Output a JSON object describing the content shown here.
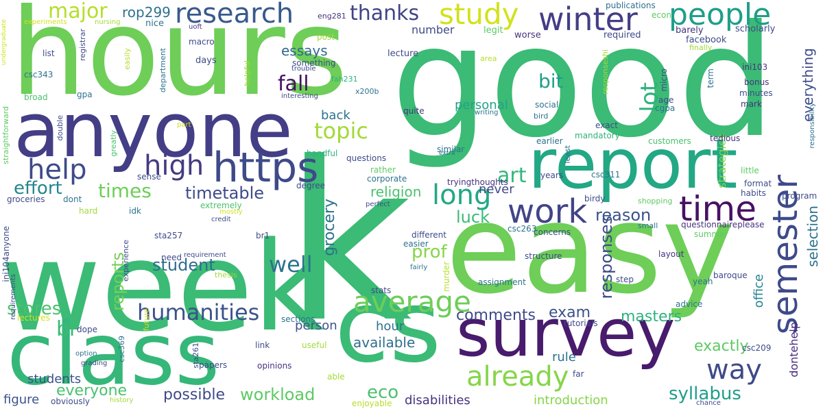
{
  "words": [
    {
      "text": "week",
      "color": "#3bbb75"
    },
    {
      "text": "good",
      "color": "#3bbb75"
    },
    {
      "text": "hours",
      "color": "#6ece58"
    },
    {
      "text": "easy",
      "color": "#6ece58"
    },
    {
      "text": "class",
      "color": "#35b779"
    },
    {
      "text": "k",
      "color": "#3bbb75"
    },
    {
      "text": "anyone",
      "color": "#433e85"
    },
    {
      "text": "report",
      "color": "#22a884"
    },
    {
      "text": "cs",
      "color": "#3bbb75"
    },
    {
      "text": "survey",
      "color": "#481b6d"
    },
    {
      "text": "https",
      "color": "#3e4a89"
    },
    {
      "text": "research",
      "color": "#38598c"
    },
    {
      "text": "people",
      "color": "#1f9e89"
    },
    {
      "text": "study",
      "color": "#d2e21b"
    },
    {
      "text": "winter",
      "color": "#433e85"
    },
    {
      "text": "time",
      "color": "#471164"
    },
    {
      "text": "semester",
      "color": "#3e4a89"
    },
    {
      "text": "work",
      "color": "#414487"
    },
    {
      "text": "help",
      "color": "#3e4a89"
    },
    {
      "text": "high",
      "color": "#443a83"
    },
    {
      "text": "average",
      "color": "#6ece58"
    },
    {
      "text": "already",
      "color": "#86d549"
    },
    {
      "text": "way",
      "color": "#3e4a89"
    },
    {
      "text": "long",
      "color": "#22a884"
    },
    {
      "text": "topic",
      "color": "#a2da37"
    },
    {
      "text": "fall",
      "color": "#471164"
    },
    {
      "text": "lot",
      "color": "#2db27d"
    },
    {
      "text": "major",
      "color": "#b5de2b"
    },
    {
      "text": "thanks",
      "color": "#414487"
    },
    {
      "text": "rop299",
      "color": "#2c728e"
    },
    {
      "text": "bit",
      "color": "#1f9e89"
    },
    {
      "text": "essays",
      "color": "#31688e"
    },
    {
      "text": "art",
      "color": "#32b67a"
    },
    {
      "text": "times",
      "color": "#6ece58"
    },
    {
      "text": "effort",
      "color": "#25858e"
    },
    {
      "text": "timetable",
      "color": "#3e4a89"
    },
    {
      "text": "humanities",
      "color": "#3b528b"
    },
    {
      "text": "well",
      "color": "#2c728e"
    },
    {
      "text": "student",
      "color": "#2e6e8e"
    },
    {
      "text": "stores",
      "color": "#4ac16d"
    },
    {
      "text": "reports",
      "color": "#75d054"
    },
    {
      "text": "br",
      "color": "#3bbb75"
    },
    {
      "text": "students",
      "color": "#3b528b"
    },
    {
      "text": "everyone",
      "color": "#4ac16d"
    },
    {
      "text": "possible",
      "color": "#3e4a89"
    },
    {
      "text": "workload",
      "color": "#5ec962"
    },
    {
      "text": "eco",
      "color": "#4ac16d"
    },
    {
      "text": "syllabus",
      "color": "#1f9e89"
    },
    {
      "text": "introduction",
      "color": "#86d549"
    },
    {
      "text": "disabilities",
      "color": "#46327e"
    },
    {
      "text": "available",
      "color": "#2e6e8e"
    },
    {
      "text": "figure",
      "color": "#3b528b"
    },
    {
      "text": "comments",
      "color": "#3e4a89"
    },
    {
      "text": "exam",
      "color": "#3b528b"
    },
    {
      "text": "masters",
      "color": "#2db27d"
    },
    {
      "text": "responses",
      "color": "#3e4a89"
    },
    {
      "text": "reason",
      "color": "#3b528b"
    },
    {
      "text": "prof",
      "color": "#86d549"
    },
    {
      "text": "luck",
      "color": "#3bbb75"
    },
    {
      "text": "grocery",
      "color": "#2c728e"
    },
    {
      "text": "religion",
      "color": "#4ac16d"
    },
    {
      "text": "personal",
      "color": "#20a386"
    },
    {
      "text": "back",
      "color": "#2c728e"
    },
    {
      "text": "selection",
      "color": "#2c728e"
    },
    {
      "text": "everything",
      "color": "#3e4a89"
    },
    {
      "text": "office",
      "color": "#25858e"
    },
    {
      "text": "exactly",
      "color": "#5ec962"
    },
    {
      "text": "rule",
      "color": "#2c728e"
    },
    {
      "text": "hour",
      "color": "#2c728e"
    },
    {
      "text": "person",
      "color": "#3b528b"
    },
    {
      "text": "strategies",
      "color": "#86d549"
    },
    {
      "text": "never",
      "color": "#3e4a89"
    },
    {
      "text": "number",
      "color": "#3e4a89"
    },
    {
      "text": "dontehelp",
      "color": "#482878"
    },
    {
      "text": "publications",
      "color": "#2e6e8e"
    },
    {
      "text": "eng281",
      "color": "#46327e"
    },
    {
      "text": "econ",
      "color": "#5ec962"
    },
    {
      "text": "facebook",
      "color": "#3e4a89"
    },
    {
      "text": "scholarly",
      "color": "#3e4a89"
    },
    {
      "text": "barely",
      "color": "#46327e"
    },
    {
      "text": "required",
      "color": "#3e4a89"
    },
    {
      "text": "worse",
      "color": "#46327e"
    },
    {
      "text": "legit",
      "color": "#5ec962"
    },
    {
      "text": "lecture",
      "color": "#3e4a89"
    },
    {
      "text": "area",
      "color": "#b5de2b"
    },
    {
      "text": "term",
      "color": "#2c728e"
    },
    {
      "text": "finally",
      "color": "#a2da37"
    },
    {
      "text": "post",
      "color": "#a2da37"
    },
    {
      "text": "nice",
      "color": "#2c728e"
    },
    {
      "text": "macro",
      "color": "#3e4a89"
    },
    {
      "text": "days",
      "color": "#3e4a89"
    },
    {
      "text": "uoft",
      "color": "#46327e"
    },
    {
      "text": "experiments",
      "color": "#d2e21b"
    },
    {
      "text": "nursing",
      "color": "#a2da37"
    },
    {
      "text": "registrar",
      "color": "#3e4a89"
    },
    {
      "text": "undergraduate",
      "color": "#d2e21b"
    },
    {
      "text": "list",
      "color": "#3e4a89"
    },
    {
      "text": "csc343",
      "color": "#2c728e"
    },
    {
      "text": "broad",
      "color": "#4ac16d"
    },
    {
      "text": "gpa",
      "color": "#2c728e"
    },
    {
      "text": "easily",
      "color": "#b5de2b"
    },
    {
      "text": "helpful",
      "color": "#a2da37"
    },
    {
      "text": "department",
      "color": "#2c728e"
    },
    {
      "text": "trouble",
      "color": "#3e4a89"
    },
    {
      "text": "something",
      "color": "#3e4a89"
    },
    {
      "text": "interesting",
      "color": "#3e4a89"
    },
    {
      "text": "fah231",
      "color": "#2db27d"
    },
    {
      "text": "x200b",
      "color": "#2c728e"
    },
    {
      "text": "quite",
      "color": "#46327e"
    },
    {
      "text": "writing",
      "color": "#2c728e"
    },
    {
      "text": "bird",
      "color": "#2c728e"
    },
    {
      "text": "social",
      "color": "#2c728e"
    },
    {
      "text": "age",
      "color": "#3e4a89"
    },
    {
      "text": "cgpa",
      "color": "#2c728e"
    },
    {
      "text": "micro",
      "color": "#3e4a89"
    },
    {
      "text": "responseshi",
      "color": "#a2da37"
    },
    {
      "text": "ini103",
      "color": "#46327e"
    },
    {
      "text": "bonus",
      "color": "#46327e"
    },
    {
      "text": "minutes",
      "color": "#3e4a89"
    },
    {
      "text": "mark",
      "color": "#46327e"
    },
    {
      "text": "responsibility",
      "color": "#2c728e"
    },
    {
      "text": "tedious",
      "color": "#46327e"
    },
    {
      "text": "customers",
      "color": "#4ac16d"
    },
    {
      "text": "exact",
      "color": "#3e4a89"
    },
    {
      "text": "mandatory",
      "color": "#2db27d"
    },
    {
      "text": "earlier",
      "color": "#2c728e"
    },
    {
      "text": "least",
      "color": "#2c728e"
    },
    {
      "text": "double",
      "color": "#3e4a89"
    },
    {
      "text": "greatly",
      "color": "#4ac16d"
    },
    {
      "text": "straightforward",
      "color": "#5ec962"
    },
    {
      "text": "part",
      "color": "#d2e21b"
    },
    {
      "text": "handful",
      "color": "#2db27d"
    },
    {
      "text": "questions",
      "color": "#3e4a89"
    },
    {
      "text": "similar",
      "color": "#2c728e"
    },
    {
      "text": "extra",
      "color": "#2c728e"
    },
    {
      "text": "rather",
      "color": "#5ec962"
    },
    {
      "text": "corporate",
      "color": "#2c728e"
    },
    {
      "text": "tryingthoughts",
      "color": "#46327e"
    },
    {
      "text": "years",
      "color": "#3e4a89"
    },
    {
      "text": "csc311",
      "color": "#2c728e"
    },
    {
      "text": "little",
      "color": "#5ec962"
    },
    {
      "text": "format",
      "color": "#3e4a89"
    },
    {
      "text": "habits",
      "color": "#3e4a89"
    },
    {
      "text": "program",
      "color": "#3e4a89"
    },
    {
      "text": "sense",
      "color": "#3e4a89"
    },
    {
      "text": "degree",
      "color": "#3e4a89"
    },
    {
      "text": "groceries",
      "color": "#3e4a89"
    },
    {
      "text": "dont",
      "color": "#2c728e"
    },
    {
      "text": "idk",
      "color": "#2c728e"
    },
    {
      "text": "hard",
      "color": "#a2da37"
    },
    {
      "text": "extremely",
      "color": "#4ac16d"
    },
    {
      "text": "mostly",
      "color": "#d2e21b"
    },
    {
      "text": "credit",
      "color": "#3e4a89"
    },
    {
      "text": "perfect",
      "color": "#3e4a89"
    },
    {
      "text": "birdy",
      "color": "#3e4a89"
    },
    {
      "text": "shopping",
      "color": "#5ec962"
    },
    {
      "text": "small",
      "color": "#2c728e"
    },
    {
      "text": "questionnaireplease",
      "color": "#46327e"
    },
    {
      "text": "concerns",
      "color": "#3e4a89"
    },
    {
      "text": "csc263",
      "color": "#2c728e"
    },
    {
      "text": "summer",
      "color": "#5ec962"
    },
    {
      "text": "layout",
      "color": "#46327e"
    },
    {
      "text": "structure",
      "color": "#3e4a89"
    },
    {
      "text": "different",
      "color": "#3e4a89"
    },
    {
      "text": "easier",
      "color": "#2c728e"
    },
    {
      "text": "fairly",
      "color": "#2c728e"
    },
    {
      "text": "assignment",
      "color": "#2c728e"
    },
    {
      "text": "step",
      "color": "#3e4a89"
    },
    {
      "text": "baroque",
      "color": "#3e4a89"
    },
    {
      "text": "yeah",
      "color": "#2c728e"
    },
    {
      "text": "advice",
      "color": "#2c728e"
    },
    {
      "text": "murder",
      "color": "#b5de2b"
    },
    {
      "text": "stats",
      "color": "#3e4a89"
    },
    {
      "text": "sta257",
      "color": "#3e4a89"
    },
    {
      "text": "br1",
      "color": "#3e4a89"
    },
    {
      "text": "experience",
      "color": "#3e4a89"
    },
    {
      "text": "need",
      "color": "#3e4a89"
    },
    {
      "text": "requirement",
      "color": "#3e4a89"
    },
    {
      "text": "ini104anyone",
      "color": "#3e4a89"
    },
    {
      "text": "requirements",
      "color": "#3e4a89"
    },
    {
      "text": "thesis",
      "color": "#a2da37"
    },
    {
      "text": "lectures",
      "color": "#d2e21b"
    },
    {
      "text": "sections",
      "color": "#2c728e"
    },
    {
      "text": "future",
      "color": "#d2e21b"
    },
    {
      "text": "csc369",
      "color": "#2c728e"
    },
    {
      "text": "dope",
      "color": "#3e4a89"
    },
    {
      "text": "option",
      "color": "#2c728e"
    },
    {
      "text": "grading",
      "color": "#3e4a89"
    },
    {
      "text": "obviously",
      "color": "#3e4a89"
    },
    {
      "text": "history",
      "color": "#a2da37"
    },
    {
      "text": "sta261",
      "color": "#3e4a89"
    },
    {
      "text": "link",
      "color": "#3e4a89"
    },
    {
      "text": "useful",
      "color": "#a2da37"
    },
    {
      "text": "papers",
      "color": "#3e4a89"
    },
    {
      "text": "opinions",
      "color": "#46327e"
    },
    {
      "text": "able",
      "color": "#a2da37"
    },
    {
      "text": "enjoyable",
      "color": "#b5de2b"
    },
    {
      "text": "tutorials",
      "color": "#3e4a89"
    },
    {
      "text": "far",
      "color": "#3e4a89"
    },
    {
      "text": "csc209",
      "color": "#3e4a89"
    },
    {
      "text": "chance",
      "color": "#3e4a89"
    }
  ]
}
